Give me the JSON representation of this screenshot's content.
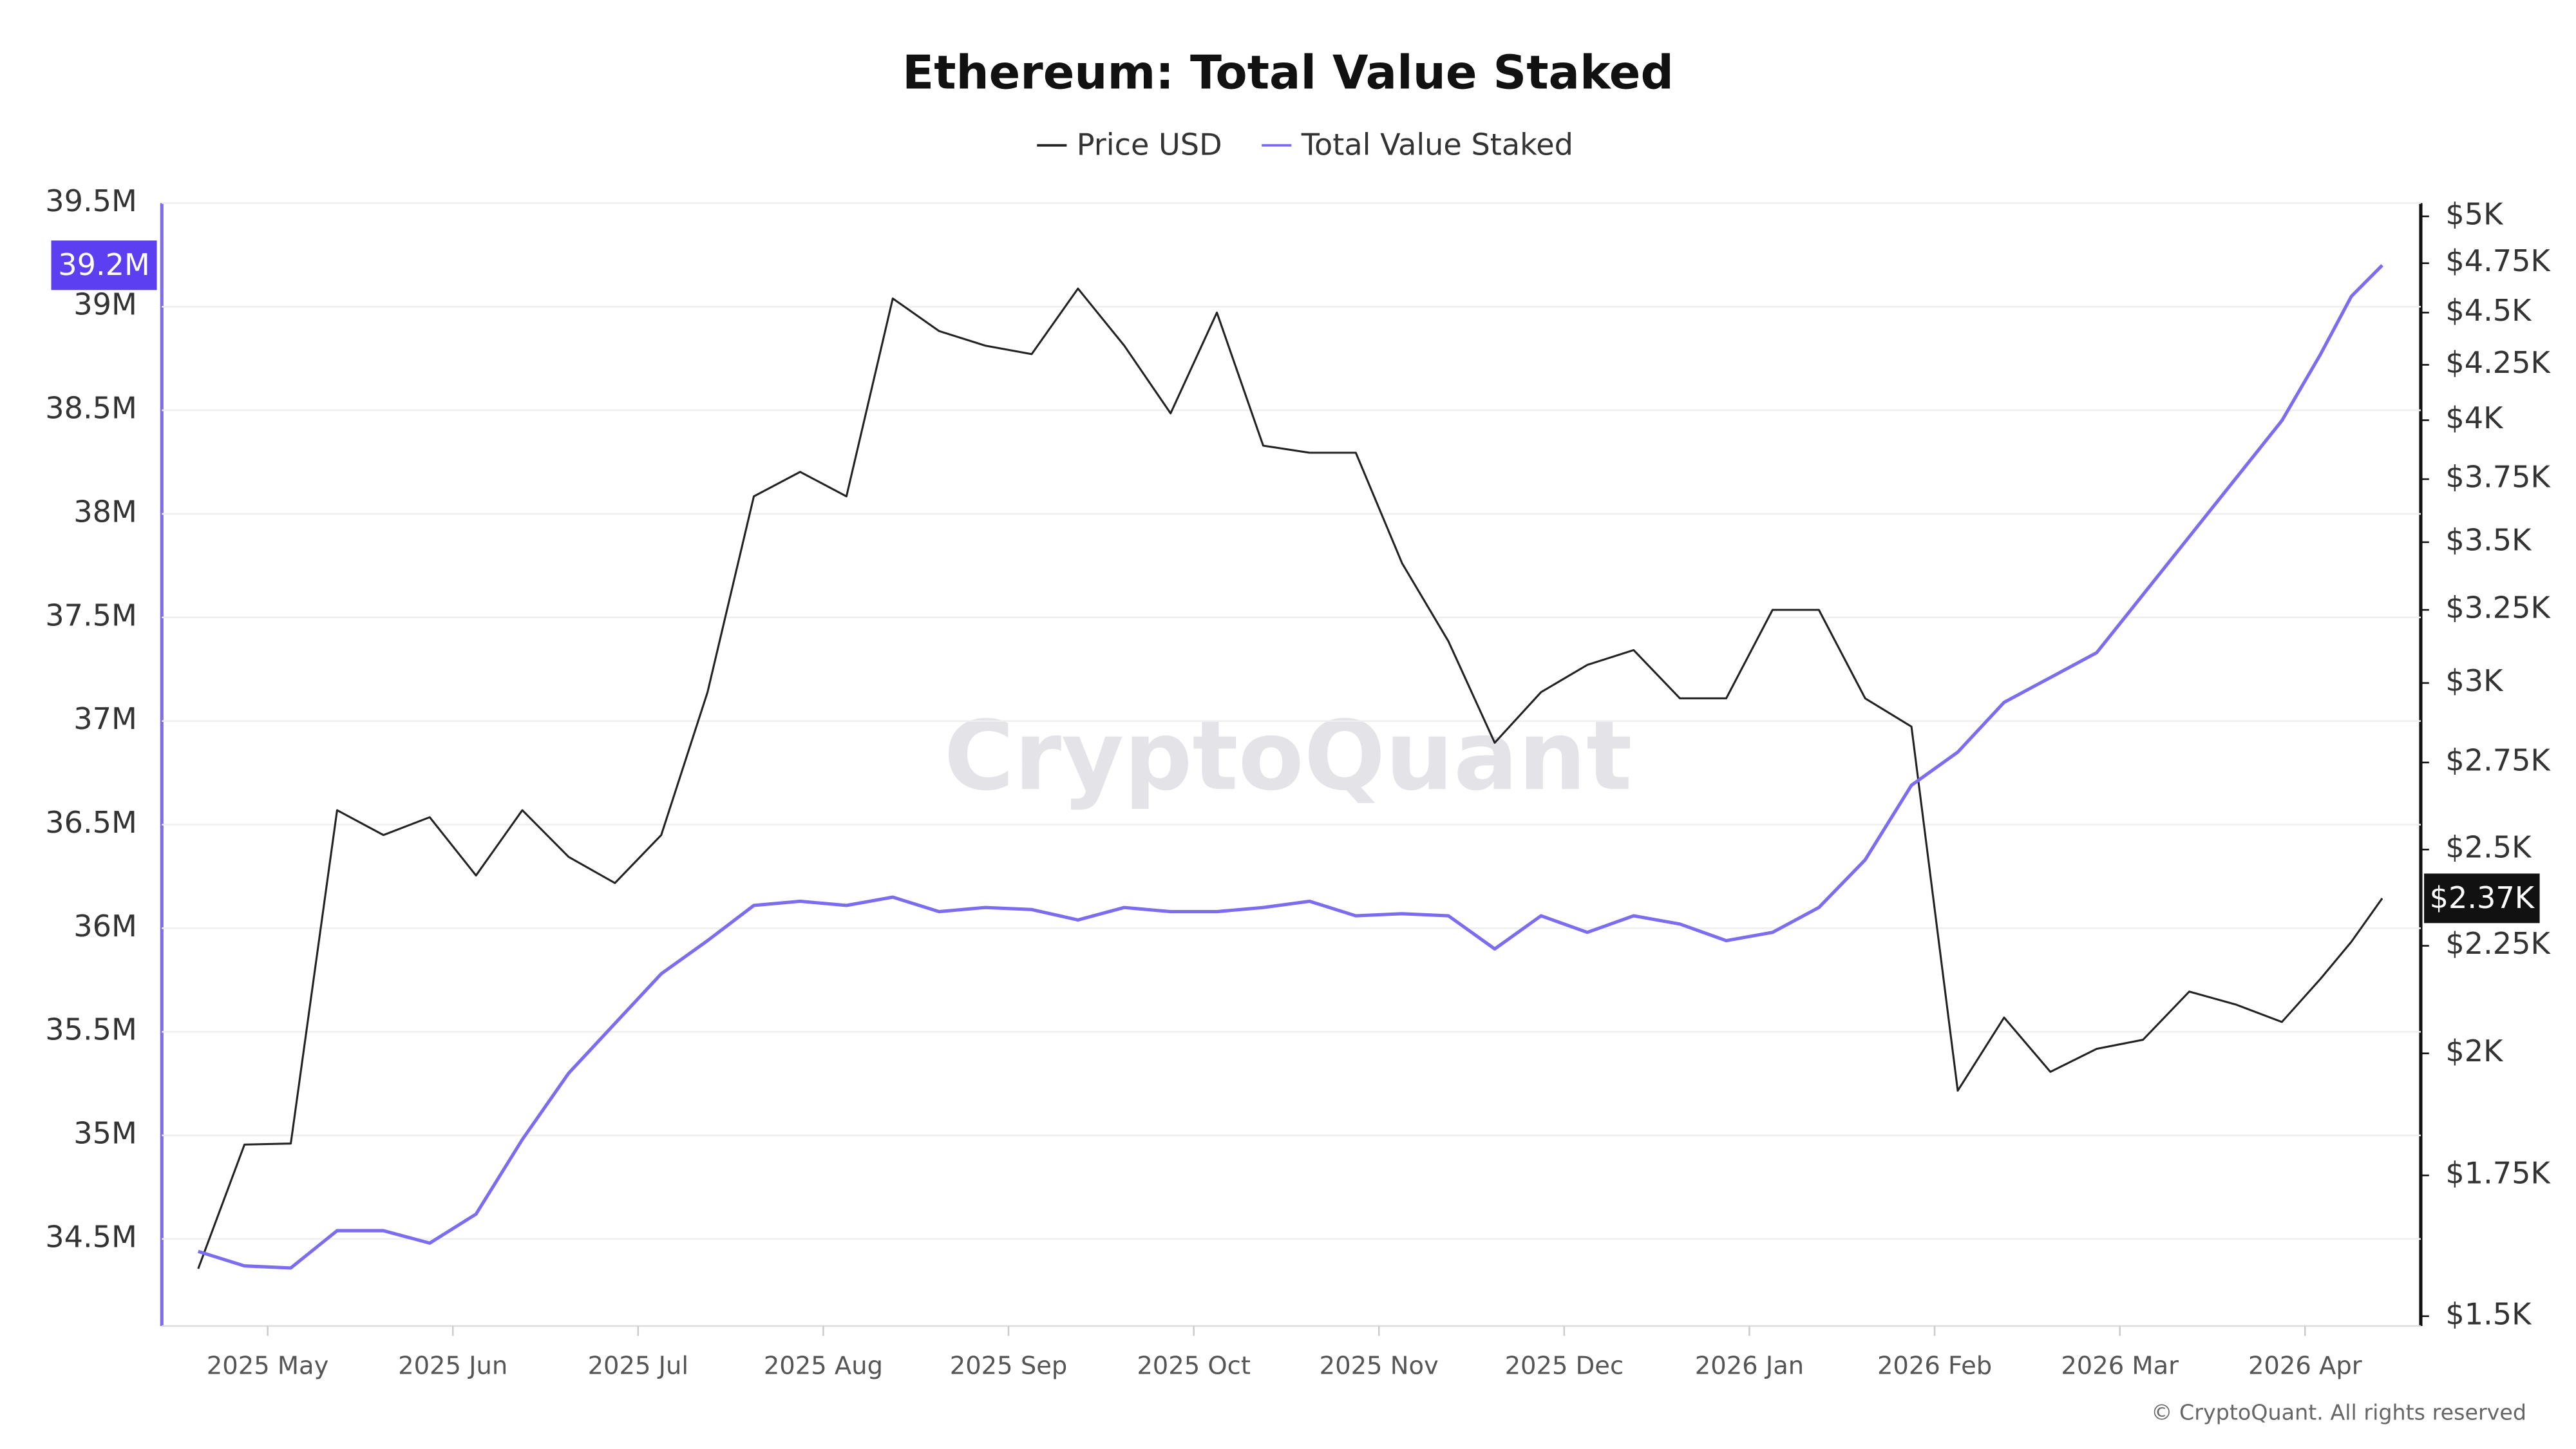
{
  "chart_data": {
    "type": "line",
    "title": "Ethereum: Total Value Staked",
    "footer": "© CryptoQuant. All rights reserved",
    "watermark": "CryptoQuant",
    "x": [
      "2025-04",
      "2025-04",
      "2025-05",
      "2025-05",
      "2025-05",
      "2025-05",
      "2025-06",
      "2025-06",
      "2025-06",
      "2025-06",
      "2025-07",
      "2025-07",
      "2025-07",
      "2025-07",
      "2025-08",
      "2025-08",
      "2025-08",
      "2025-08",
      "2025-09",
      "2025-09",
      "2025-09",
      "2025-09",
      "2025-10",
      "2025-10",
      "2025-10",
      "2025-10",
      "2025-11",
      "2025-11",
      "2025-11",
      "2025-11",
      "2025-12",
      "2025-12",
      "2025-12",
      "2025-12",
      "2026-01",
      "2026-01",
      "2026-01",
      "2026-01",
      "2026-02",
      "2026-02",
      "2026-02",
      "2026-02",
      "2026-03",
      "2026-03",
      "2026-03",
      "2026-03",
      "2026-04",
      "2026-04",
      "2026-04"
    ],
    "xticks": [
      {
        "value": "2025-05",
        "label": "2025 May"
      },
      {
        "value": "2025-06",
        "label": "2025 Jun"
      },
      {
        "value": "2025-07",
        "label": "2025 Jul"
      },
      {
        "value": "2025-08",
        "label": "2025 Aug"
      },
      {
        "value": "2025-09",
        "label": "2025 Sep"
      },
      {
        "value": "2025-10",
        "label": "2025 Oct"
      },
      {
        "value": "2025-11",
        "label": "2025 Nov"
      },
      {
        "value": "2025-12",
        "label": "2025 Dec"
      },
      {
        "value": "2026-01",
        "label": "2026 Jan"
      },
      {
        "value": "2026-02",
        "label": "2026 Feb"
      },
      {
        "value": "2026-03",
        "label": "2026 Mar"
      },
      {
        "value": "2026-04",
        "label": "2026 Apr"
      }
    ],
    "series": [
      {
        "name": "Price USD",
        "color": "#222222",
        "axis": "y2",
        "last_label": "$2.37K",
        "values": [
          1580,
          1810,
          1812,
          2610,
          2540,
          2590,
          2430,
          2610,
          2480,
          2410,
          2540,
          2970,
          3680,
          3780,
          3680,
          4570,
          4410,
          4340,
          4300,
          4620,
          4340,
          4030,
          4500,
          3890,
          3860,
          3860,
          3420,
          3140,
          2810,
          2970,
          3060,
          3110,
          2950,
          2950,
          3250,
          3250,
          2950,
          2860,
          1920,
          2080,
          1960,
          2010,
          2030,
          2140,
          2110,
          2070,
          2170,
          2260,
          2370
        ]
      },
      {
        "name": "Total Value Staked",
        "color": "#7b6cf0",
        "axis": "y",
        "last_label": "39.2M",
        "values": [
          34.44,
          34.37,
          34.36,
          34.54,
          34.54,
          34.48,
          34.62,
          34.98,
          35.3,
          35.54,
          35.78,
          35.94,
          36.11,
          36.13,
          36.11,
          36.15,
          36.08,
          36.1,
          36.09,
          36.04,
          36.1,
          36.08,
          36.08,
          36.1,
          36.13,
          36.06,
          36.07,
          36.06,
          35.9,
          36.06,
          35.98,
          36.06,
          36.02,
          35.94,
          35.98,
          36.1,
          36.33,
          36.69,
          36.85,
          37.09,
          37.21,
          37.33,
          37.61,
          37.89,
          38.17,
          38.45,
          38.77,
          39.05,
          39.2
        ]
      }
    ],
    "ylim": [
      34.08,
      39.5
    ],
    "yticks": [
      {
        "value": 34.5,
        "label": "34.5M"
      },
      {
        "value": 35,
        "label": "35M"
      },
      {
        "value": 35.5,
        "label": "35.5M"
      },
      {
        "value": 36,
        "label": "36M"
      },
      {
        "value": 36.5,
        "label": "36.5M"
      },
      {
        "value": 37,
        "label": "37M"
      },
      {
        "value": 37.5,
        "label": "37.5M"
      },
      {
        "value": 38,
        "label": "38M"
      },
      {
        "value": 38.5,
        "label": "38.5M"
      },
      {
        "value": 39,
        "label": "39M"
      },
      {
        "value": 39.5,
        "label": "39.5M"
      }
    ],
    "y2lim": [
      1484,
      5073
    ],
    "y2log": true,
    "y2ticks": [
      {
        "value": 1500,
        "label": "$1.5K"
      },
      {
        "value": 1750,
        "label": "$1.75K"
      },
      {
        "value": 2000,
        "label": "$2K"
      },
      {
        "value": 2250,
        "label": "$2.25K"
      },
      {
        "value": 2500,
        "label": "$2.5K"
      },
      {
        "value": 2750,
        "label": "$2.75K"
      },
      {
        "value": 3000,
        "label": "$3K"
      },
      {
        "value": 3250,
        "label": "$3.25K"
      },
      {
        "value": 3500,
        "label": "$3.5K"
      },
      {
        "value": 3750,
        "label": "$3.75K"
      },
      {
        "value": 4000,
        "label": "$4K"
      },
      {
        "value": 4250,
        "label": "$4.25K"
      },
      {
        "value": 4500,
        "label": "$4.5K"
      },
      {
        "value": 4750,
        "label": "$4.75K"
      },
      {
        "value": 5000,
        "label": "$5K"
      }
    ],
    "grid": true
  }
}
